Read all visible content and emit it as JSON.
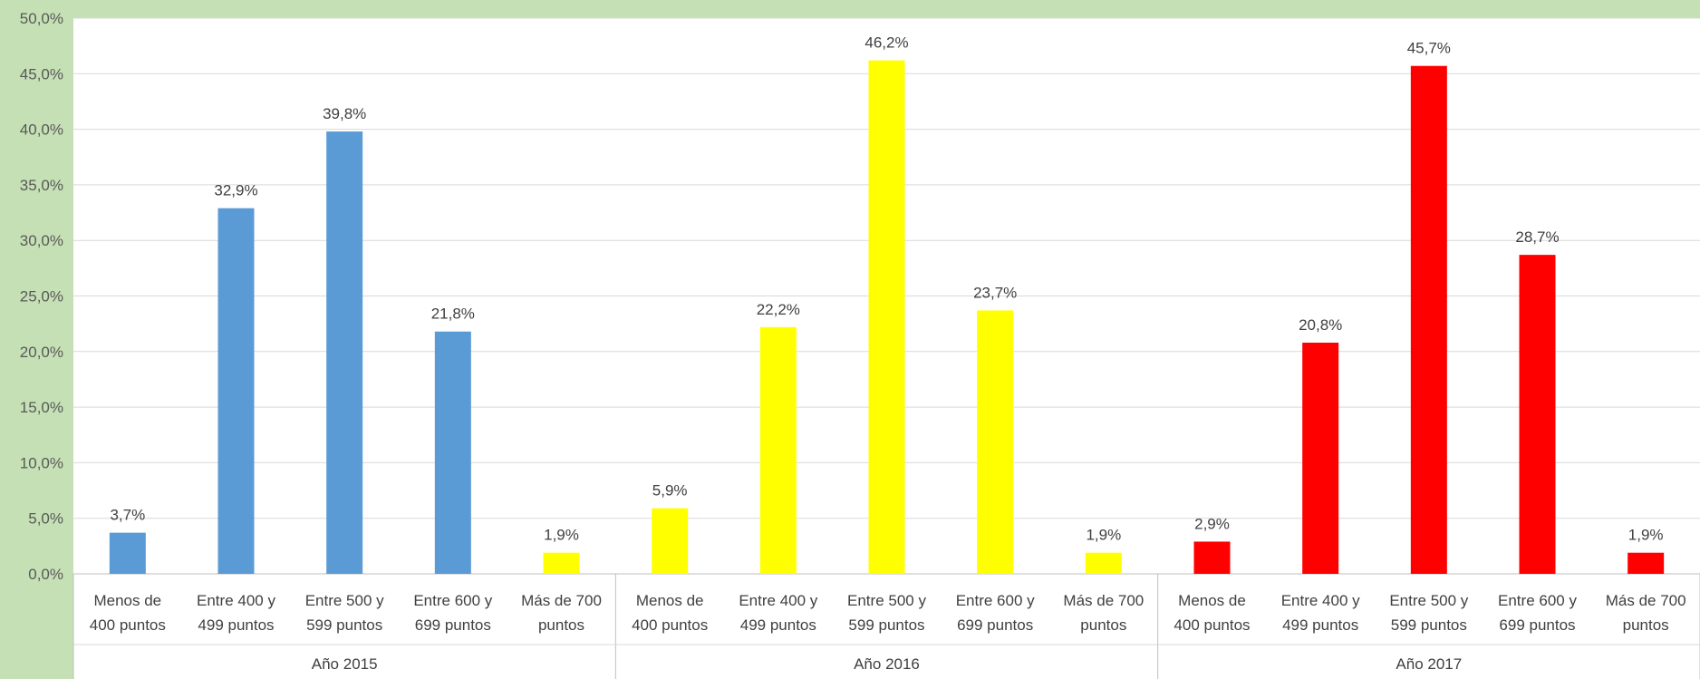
{
  "chart_data": {
    "type": "bar",
    "ylim": [
      0,
      50
    ],
    "y_ticks": [
      "0,0%",
      "5,0%",
      "10,0%",
      "15,0%",
      "20,0%",
      "25,0%",
      "30,0%",
      "35,0%",
      "40,0%",
      "45,0%",
      "50,0%"
    ],
    "grid": true,
    "groups": [
      "Año 2015",
      "Año 2016",
      "Año 2017"
    ],
    "categories": [
      [
        "Menos de",
        "400 puntos"
      ],
      [
        "Entre 400 y",
        "499 puntos"
      ],
      [
        "Entre 500 y",
        "599 puntos"
      ],
      [
        "Entre 600 y",
        "699 puntos"
      ],
      [
        "Más de 700",
        "puntos"
      ],
      [
        "Menos de",
        "400 puntos"
      ],
      [
        "Entre 400 y",
        "499 puntos"
      ],
      [
        "Entre 500 y",
        "599 puntos"
      ],
      [
        "Entre 600 y",
        "699 puntos"
      ],
      [
        "Más de 700",
        "puntos"
      ],
      [
        "Menos de",
        "400 puntos"
      ],
      [
        "Entre 400 y",
        "499 puntos"
      ],
      [
        "Entre 500 y",
        "599 puntos"
      ],
      [
        "Entre 600 y",
        "699 puntos"
      ],
      [
        "Más de 700",
        "puntos"
      ]
    ],
    "values": [
      3.7,
      32.9,
      39.8,
      21.8,
      1.9,
      5.9,
      22.2,
      46.2,
      23.7,
      1.9,
      2.9,
      20.8,
      45.7,
      28.7,
      1.9
    ],
    "data_labels": [
      "3,7%",
      "32,9%",
      "39,8%",
      "21,8%",
      "1,9%",
      "5,9%",
      "22,2%",
      "46,2%",
      "23,7%",
      "1,9%",
      "2,9%",
      "20,8%",
      "45,7%",
      "28,7%",
      "1,9%"
    ],
    "bar_colors": [
      "#5b9bd5",
      "#5b9bd5",
      "#5b9bd5",
      "#5b9bd5",
      "#ffff00",
      "#ffff00",
      "#ffff00",
      "#ffff00",
      "#ffff00",
      "#ffff00",
      "#ff0000",
      "#ff0000",
      "#ff0000",
      "#ff0000",
      "#ff0000"
    ],
    "colors": {
      "background": "#c5e0b4",
      "plot_area": "#ffffff",
      "grid": "#d9d9d9"
    }
  }
}
